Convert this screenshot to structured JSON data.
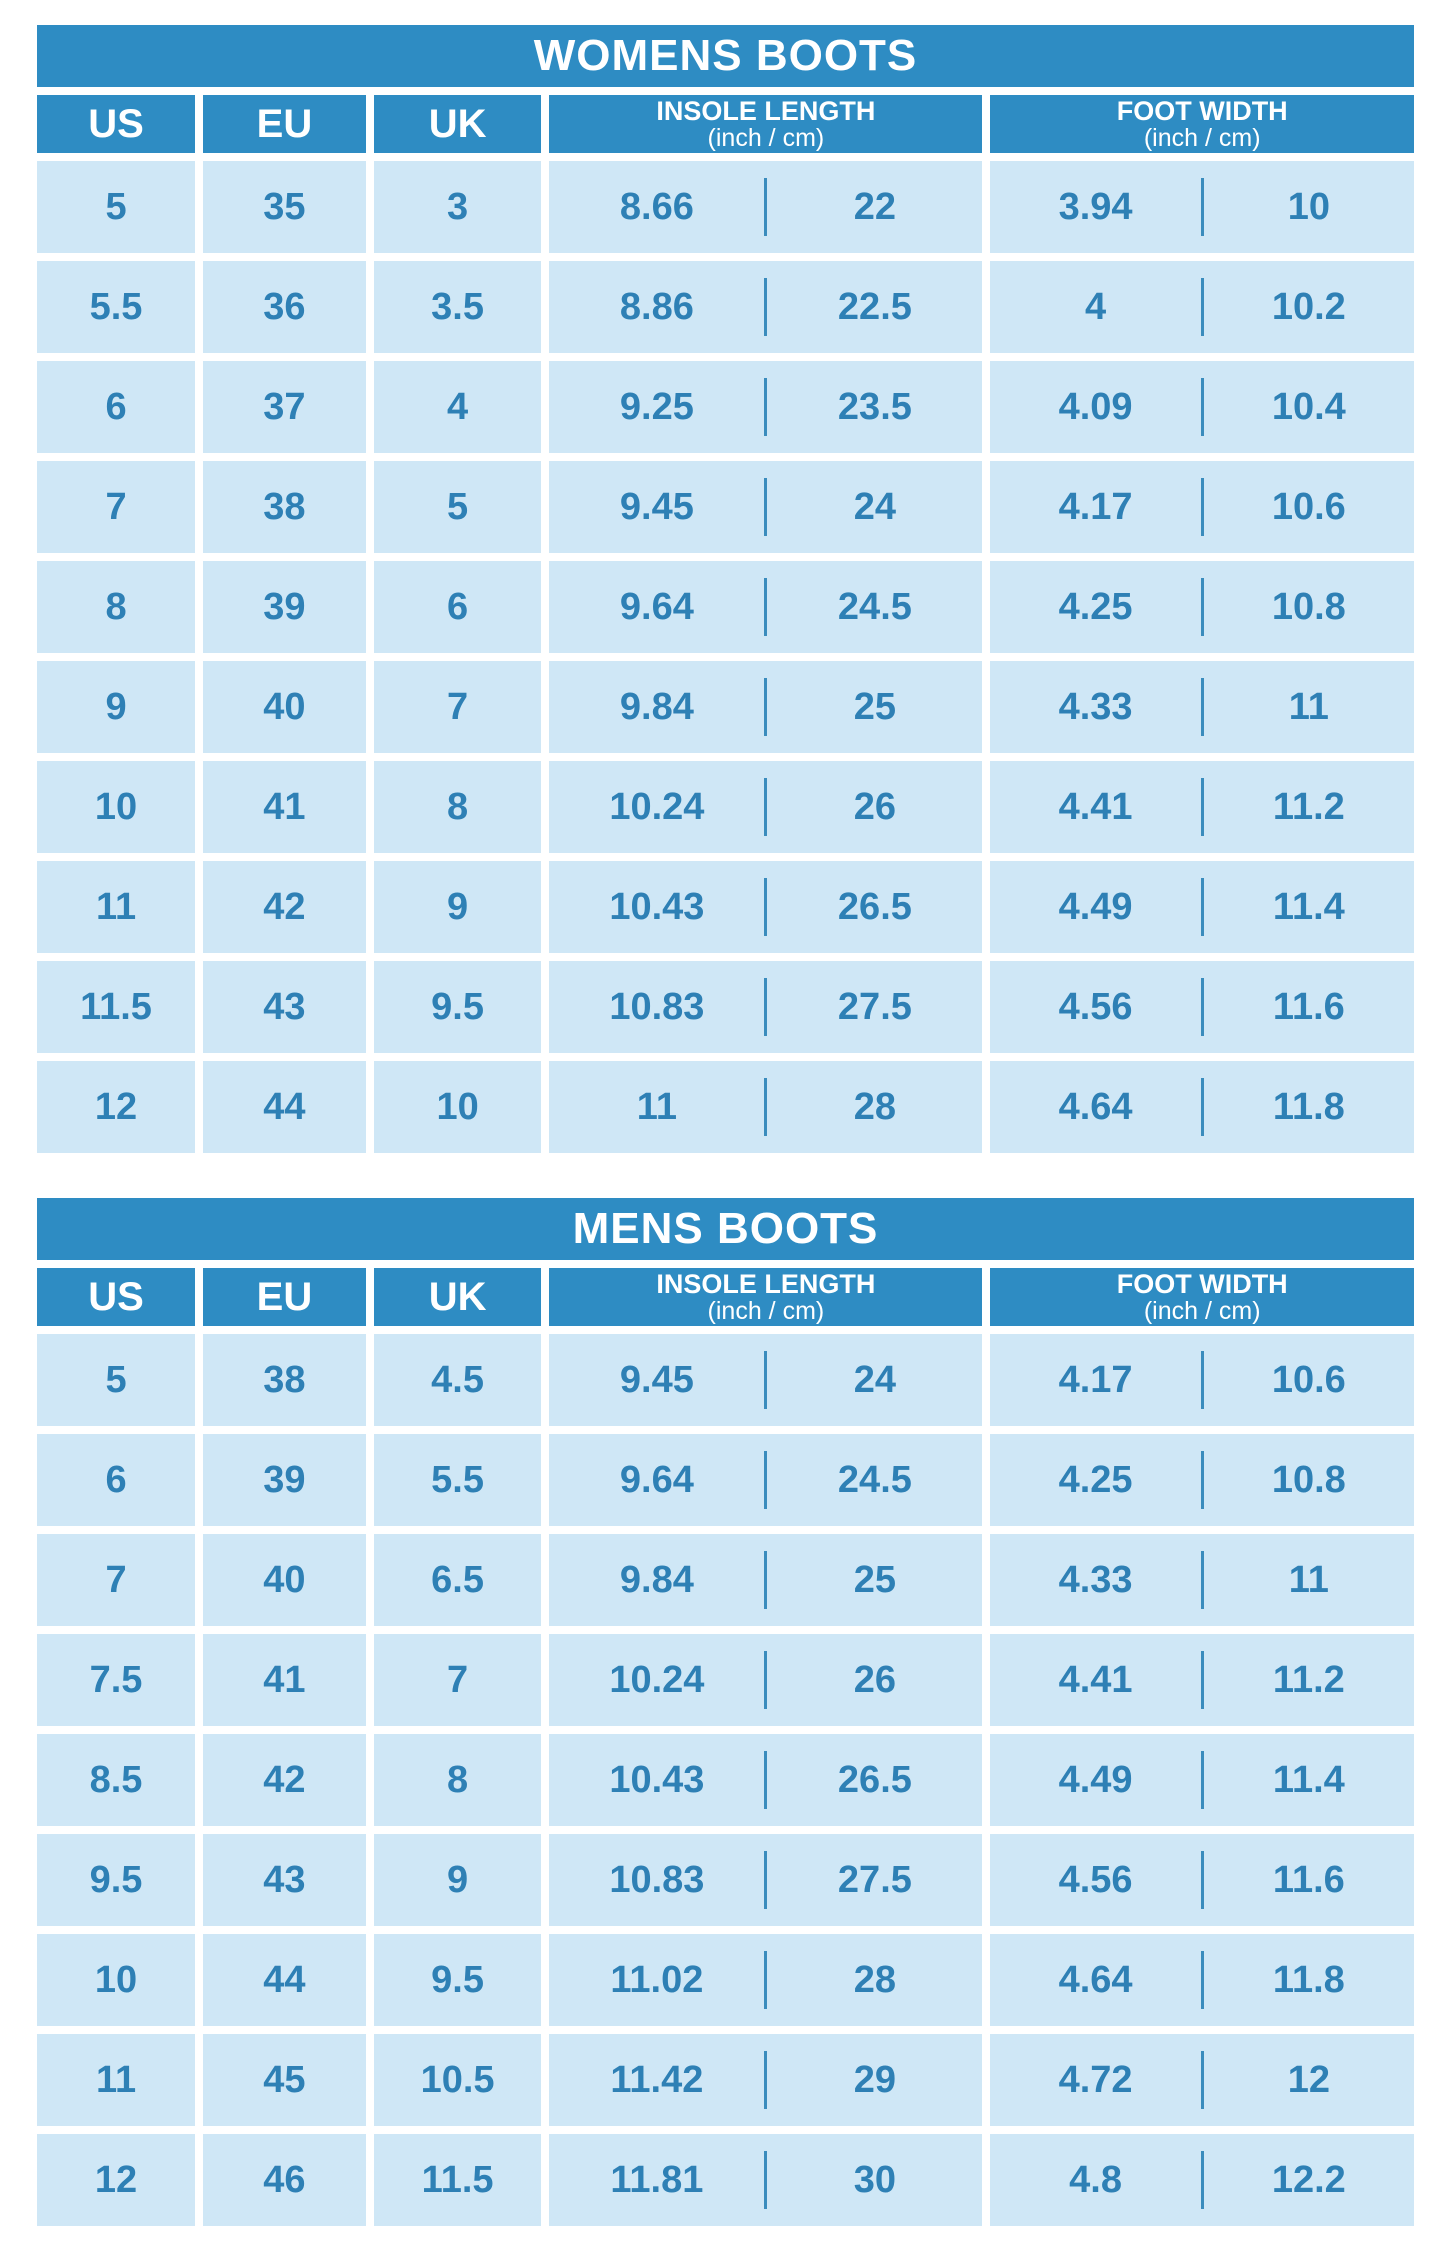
{
  "colors": {
    "header_bg": "#2e8cc3",
    "cell_bg": "#cfe7f6",
    "cell_text": "#2e80b5",
    "header_text": "#ffffff",
    "background": "#ffffff"
  },
  "tables": [
    {
      "id": "womens-boots",
      "title": "WOMENS BOOTS",
      "columns": [
        {
          "label": "US"
        },
        {
          "label": "EU"
        },
        {
          "label": "UK"
        },
        {
          "label": "INSOLE LENGTH",
          "sublabel": "(inch / cm)"
        },
        {
          "label": "FOOT WIDTH",
          "sublabel": "(inch / cm)"
        }
      ],
      "rows": [
        [
          "5",
          "35",
          "3",
          "8.66",
          "22",
          "3.94",
          "10"
        ],
        [
          "5.5",
          "36",
          "3.5",
          "8.86",
          "22.5",
          "4",
          "10.2"
        ],
        [
          "6",
          "37",
          "4",
          "9.25",
          "23.5",
          "4.09",
          "10.4"
        ],
        [
          "7",
          "38",
          "5",
          "9.45",
          "24",
          "4.17",
          "10.6"
        ],
        [
          "8",
          "39",
          "6",
          "9.64",
          "24.5",
          "4.25",
          "10.8"
        ],
        [
          "9",
          "40",
          "7",
          "9.84",
          "25",
          "4.33",
          "11"
        ],
        [
          "10",
          "41",
          "8",
          "10.24",
          "26",
          "4.41",
          "11.2"
        ],
        [
          "11",
          "42",
          "9",
          "10.43",
          "26.5",
          "4.49",
          "11.4"
        ],
        [
          "11.5",
          "43",
          "9.5",
          "10.83",
          "27.5",
          "4.56",
          "11.6"
        ],
        [
          "12",
          "44",
          "10",
          "11",
          "28",
          "4.64",
          "11.8"
        ]
      ]
    },
    {
      "id": "mens-boots",
      "title": "MENS BOOTS",
      "columns": [
        {
          "label": "US"
        },
        {
          "label": "EU"
        },
        {
          "label": "UK"
        },
        {
          "label": "INSOLE LENGTH",
          "sublabel": "(inch / cm)"
        },
        {
          "label": "FOOT WIDTH",
          "sublabel": "(inch / cm)"
        }
      ],
      "rows": [
        [
          "5",
          "38",
          "4.5",
          "9.45",
          "24",
          "4.17",
          "10.6"
        ],
        [
          "6",
          "39",
          "5.5",
          "9.64",
          "24.5",
          "4.25",
          "10.8"
        ],
        [
          "7",
          "40",
          "6.5",
          "9.84",
          "25",
          "4.33",
          "11"
        ],
        [
          "7.5",
          "41",
          "7",
          "10.24",
          "26",
          "4.41",
          "11.2"
        ],
        [
          "8.5",
          "42",
          "8",
          "10.43",
          "26.5",
          "4.49",
          "11.4"
        ],
        [
          "9.5",
          "43",
          "9",
          "10.83",
          "27.5",
          "4.56",
          "11.6"
        ],
        [
          "10",
          "44",
          "9.5",
          "11.02",
          "28",
          "4.64",
          "11.8"
        ],
        [
          "11",
          "45",
          "10.5",
          "11.42",
          "29",
          "4.72",
          "12"
        ],
        [
          "12",
          "46",
          "11.5",
          "11.81",
          "30",
          "4.8",
          "12.2"
        ]
      ]
    }
  ]
}
